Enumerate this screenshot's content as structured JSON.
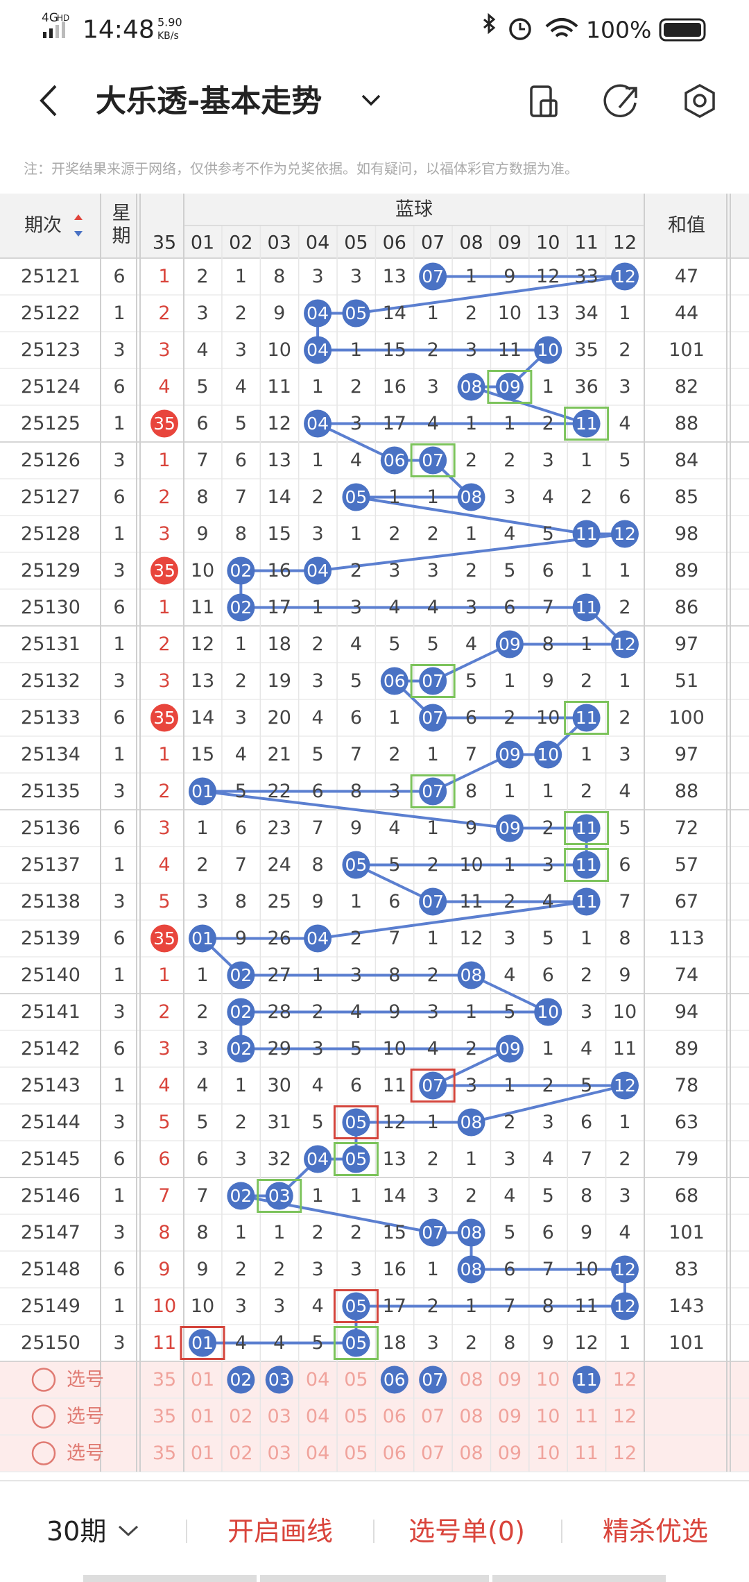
{
  "status_bar": {
    "network": "4G",
    "network_sub": "HD",
    "time": "14:48",
    "speed": "5.90",
    "speed_unit": "KB/s",
    "battery": "100%"
  },
  "header": {
    "title": "大乐透-基本走势"
  },
  "notice": "注：开奖结果来源于网络，仅供参考不作为兑奖依据。如有疑问，以福体彩官方数据为准。",
  "table": {
    "col_period": "期次",
    "col_weekday": "星期",
    "group": "蓝球",
    "columns": [
      "35",
      "01",
      "02",
      "03",
      "04",
      "05",
      "06",
      "07",
      "08",
      "09",
      "10",
      "11",
      "12"
    ],
    "col_sum": "和值",
    "rows": [
      {
        "period": "25121",
        "weekday": "6",
        "cells": [
          "1",
          "2",
          "1",
          "8",
          "3",
          "3",
          "13",
          {
            "ball": "07"
          },
          "1",
          "9",
          "12",
          "33",
          {
            "ball": "12"
          }
        ],
        "sum": "47"
      },
      {
        "period": "25122",
        "weekday": "1",
        "cells": [
          "2",
          "3",
          "2",
          "9",
          {
            "ball": "04"
          },
          {
            "ball": "05"
          },
          "14",
          "1",
          "2",
          "10",
          "13",
          "34",
          "1"
        ],
        "sum": "44"
      },
      {
        "period": "25123",
        "weekday": "3",
        "cells": [
          "3",
          "4",
          "3",
          "10",
          {
            "ball": "04"
          },
          "1",
          "15",
          "2",
          "3",
          "11",
          {
            "ball": "10"
          },
          "35",
          "2"
        ],
        "sum": "101"
      },
      {
        "period": "25124",
        "weekday": "6",
        "cells": [
          "4",
          "5",
          "4",
          "11",
          "1",
          "2",
          "16",
          "3",
          {
            "ball": "08"
          },
          {
            "ball": "09",
            "box": "green"
          },
          "1",
          "36",
          "3"
        ],
        "sum": "82"
      },
      {
        "period": "25125",
        "weekday": "1",
        "cells": [
          {
            "ball": "35"
          },
          "6",
          "5",
          "12",
          {
            "ball": "04"
          },
          "3",
          "17",
          "4",
          "1",
          "1",
          "2",
          {
            "ball": "11",
            "box": "green"
          },
          "4"
        ],
        "sum": "88"
      },
      {
        "period": "25126",
        "weekday": "3",
        "cells": [
          "1",
          "7",
          "6",
          "13",
          "1",
          "4",
          {
            "ball": "06"
          },
          {
            "ball": "07",
            "box": "green"
          },
          "2",
          "2",
          "3",
          "1",
          "5"
        ],
        "sum": "84"
      },
      {
        "period": "25127",
        "weekday": "6",
        "cells": [
          "2",
          "8",
          "7",
          "14",
          "2",
          {
            "ball": "05"
          },
          "1",
          "1",
          {
            "ball": "08"
          },
          "3",
          "4",
          "2",
          "6"
        ],
        "sum": "85"
      },
      {
        "period": "25128",
        "weekday": "1",
        "cells": [
          "3",
          "9",
          "8",
          "15",
          "3",
          "1",
          "2",
          "2",
          "1",
          "4",
          "5",
          {
            "ball": "11"
          },
          {
            "ball": "12"
          }
        ],
        "sum": "98"
      },
      {
        "period": "25129",
        "weekday": "3",
        "cells": [
          {
            "ball": "35"
          },
          "10",
          {
            "ball": "02"
          },
          "16",
          {
            "ball": "04"
          },
          "2",
          "3",
          "3",
          "2",
          "5",
          "6",
          "1",
          "1"
        ],
        "sum": "89"
      },
      {
        "period": "25130",
        "weekday": "6",
        "cells": [
          "1",
          "11",
          {
            "ball": "02"
          },
          "17",
          "1",
          "3",
          "4",
          "4",
          "3",
          "6",
          "7",
          {
            "ball": "11"
          },
          "2"
        ],
        "sum": "86"
      },
      {
        "period": "25131",
        "weekday": "1",
        "cells": [
          "2",
          "12",
          "1",
          "18",
          "2",
          "4",
          "5",
          "5",
          "4",
          {
            "ball": "09"
          },
          "8",
          "1",
          {
            "ball": "12"
          }
        ],
        "sum": "97"
      },
      {
        "period": "25132",
        "weekday": "3",
        "cells": [
          "3",
          "13",
          "2",
          "19",
          "3",
          "5",
          {
            "ball": "06"
          },
          {
            "ball": "07",
            "box": "green"
          },
          "5",
          "1",
          "9",
          "2",
          "1"
        ],
        "sum": "51"
      },
      {
        "period": "25133",
        "weekday": "6",
        "cells": [
          {
            "ball": "35"
          },
          "14",
          "3",
          "20",
          "4",
          "6",
          "1",
          {
            "ball": "07"
          },
          "6",
          "2",
          "10",
          {
            "ball": "11",
            "box": "green"
          },
          "2"
        ],
        "sum": "100"
      },
      {
        "period": "25134",
        "weekday": "1",
        "cells": [
          "1",
          "15",
          "4",
          "21",
          "5",
          "7",
          "2",
          "1",
          "7",
          {
            "ball": "09"
          },
          {
            "ball": "10"
          },
          "1",
          "3"
        ],
        "sum": "97"
      },
      {
        "period": "25135",
        "weekday": "3",
        "cells": [
          "2",
          {
            "ball": "01"
          },
          "5",
          "22",
          "6",
          "8",
          "3",
          {
            "ball": "07",
            "box": "green"
          },
          "8",
          "1",
          "1",
          "2",
          "4"
        ],
        "sum": "88"
      },
      {
        "period": "25136",
        "weekday": "6",
        "cells": [
          "3",
          "1",
          "6",
          "23",
          "7",
          "9",
          "4",
          "1",
          "9",
          {
            "ball": "09"
          },
          "2",
          {
            "ball": "11",
            "box": "green"
          },
          "5"
        ],
        "sum": "72"
      },
      {
        "period": "25137",
        "weekday": "1",
        "cells": [
          "4",
          "2",
          "7",
          "24",
          "8",
          {
            "ball": "05"
          },
          "5",
          "2",
          "10",
          "1",
          "3",
          {
            "ball": "11",
            "box": "green"
          },
          "6"
        ],
        "sum": "57"
      },
      {
        "period": "25138",
        "weekday": "3",
        "cells": [
          "5",
          "3",
          "8",
          "25",
          "9",
          "1",
          "6",
          {
            "ball": "07"
          },
          "11",
          "2",
          "4",
          {
            "ball": "11"
          },
          "7"
        ],
        "sum": "67"
      },
      {
        "period": "25139",
        "weekday": "6",
        "cells": [
          {
            "ball": "35"
          },
          {
            "ball": "01"
          },
          "9",
          "26",
          {
            "ball": "04"
          },
          "2",
          "7",
          "1",
          "12",
          "3",
          "5",
          "1",
          "8"
        ],
        "sum": "113"
      },
      {
        "period": "25140",
        "weekday": "1",
        "cells": [
          "1",
          "1",
          {
            "ball": "02"
          },
          "27",
          "1",
          "3",
          "8",
          "2",
          {
            "ball": "08"
          },
          "4",
          "6",
          "2",
          "9"
        ],
        "sum": "74"
      },
      {
        "period": "25141",
        "weekday": "3",
        "cells": [
          "2",
          "2",
          {
            "ball": "02"
          },
          "28",
          "2",
          "4",
          "9",
          "3",
          "1",
          "5",
          {
            "ball": "10"
          },
          "3",
          "10"
        ],
        "sum": "94"
      },
      {
        "period": "25142",
        "weekday": "6",
        "cells": [
          "3",
          "3",
          {
            "ball": "02"
          },
          "29",
          "3",
          "5",
          "10",
          "4",
          "2",
          {
            "ball": "09"
          },
          "1",
          "4",
          "11"
        ],
        "sum": "89"
      },
      {
        "period": "25143",
        "weekday": "1",
        "cells": [
          "4",
          "4",
          "1",
          "30",
          "4",
          "6",
          "11",
          {
            "ball": "07",
            "box": "red"
          },
          "3",
          "1",
          "2",
          "5",
          {
            "ball": "12"
          }
        ],
        "sum": "78"
      },
      {
        "period": "25144",
        "weekday": "3",
        "cells": [
          "5",
          "5",
          "2",
          "31",
          "5",
          {
            "ball": "05",
            "box": "red"
          },
          "12",
          "1",
          {
            "ball": "08"
          },
          "2",
          "3",
          "6",
          "1"
        ],
        "sum": "63"
      },
      {
        "period": "25145",
        "weekday": "6",
        "cells": [
          "6",
          "6",
          "3",
          "32",
          {
            "ball": "04"
          },
          {
            "ball": "05",
            "box": "green"
          },
          "13",
          "2",
          "1",
          "3",
          "4",
          "7",
          "2"
        ],
        "sum": "79"
      },
      {
        "period": "25146",
        "weekday": "1",
        "cells": [
          "7",
          "7",
          {
            "ball": "02"
          },
          {
            "ball": "03",
            "box": "green"
          },
          "1",
          "1",
          "14",
          "3",
          "2",
          "4",
          "5",
          "8",
          "3"
        ],
        "sum": "68"
      },
      {
        "period": "25147",
        "weekday": "3",
        "cells": [
          "8",
          "8",
          "1",
          "1",
          "2",
          "2",
          "15",
          {
            "ball": "07"
          },
          {
            "ball": "08"
          },
          "5",
          "6",
          "9",
          "4"
        ],
        "sum": "101"
      },
      {
        "period": "25148",
        "weekday": "6",
        "cells": [
          "9",
          "9",
          "2",
          "2",
          "3",
          "3",
          "16",
          "1",
          {
            "ball": "08"
          },
          "6",
          "7",
          "10",
          {
            "ball": "12"
          }
        ],
        "sum": "83"
      },
      {
        "period": "25149",
        "weekday": "1",
        "cells": [
          "10",
          "10",
          "3",
          "3",
          "4",
          {
            "ball": "05",
            "box": "red"
          },
          "17",
          "2",
          "1",
          "7",
          "8",
          "11",
          {
            "ball": "12"
          }
        ],
        "sum": "143"
      },
      {
        "period": "25150",
        "weekday": "3",
        "cells": [
          "11",
          {
            "ball": "01",
            "box": "red"
          },
          "4",
          "4",
          "5",
          {
            "ball": "05",
            "box": "green"
          },
          "18",
          "3",
          "2",
          "8",
          "9",
          "12",
          "1"
        ],
        "sum": "101"
      }
    ],
    "select_rows": [
      {
        "label": "选号",
        "cells": [
          "35",
          "01",
          {
            "ball": "02"
          },
          {
            "ball": "03"
          },
          "04",
          "05",
          {
            "ball": "06"
          },
          {
            "ball": "07"
          },
          "08",
          "09",
          "10",
          {
            "ball": "11"
          },
          "12"
        ]
      },
      {
        "label": "选号",
        "cells": [
          "35",
          "01",
          "02",
          "03",
          "04",
          "05",
          "06",
          "07",
          "08",
          "09",
          "10",
          "11",
          "12"
        ]
      },
      {
        "label": "选号",
        "cells": [
          "35",
          "01",
          "02",
          "03",
          "04",
          "05",
          "06",
          "07",
          "08",
          "09",
          "10",
          "11",
          "12"
        ]
      }
    ]
  },
  "bottom_bar": {
    "periods": "30期",
    "draw": "开启画线",
    "list": "选号单(0)",
    "filter": "精杀优选"
  }
}
